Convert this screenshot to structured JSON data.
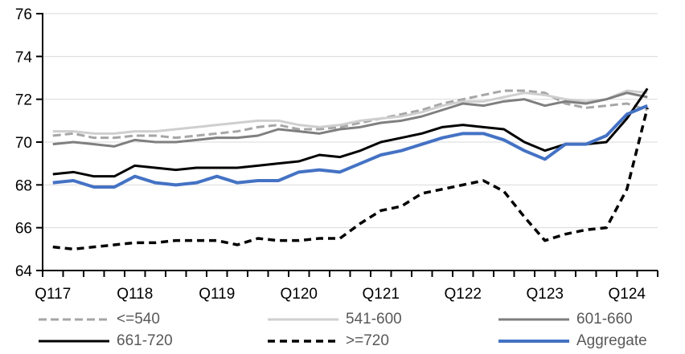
{
  "chart_data": {
    "type": "line",
    "title": "",
    "x_axis": {
      "tick_labels": [
        "Q117",
        "Q118",
        "Q119",
        "Q120",
        "Q121",
        "Q122",
        "Q123",
        "Q124"
      ],
      "tick_positions": [
        0,
        4,
        8,
        12,
        16,
        20,
        24,
        28
      ],
      "n_points": 30
    },
    "y_axis": {
      "min": 64,
      "max": 76,
      "ticks": [
        76,
        74,
        72,
        70,
        68,
        66,
        64
      ]
    },
    "grid": true,
    "legend_position": "bottom",
    "series": [
      {
        "name": "<=540",
        "color": "#A6A6A6",
        "style": "dashed",
        "dash": "10 5",
        "width": 3,
        "values": [
          70.3,
          70.4,
          70.2,
          70.2,
          70.3,
          70.3,
          70.2,
          70.3,
          70.4,
          70.5,
          70.7,
          70.8,
          70.6,
          70.6,
          70.7,
          70.9,
          71.1,
          71.3,
          71.5,
          71.8,
          72.0,
          72.2,
          72.4,
          72.4,
          72.3,
          71.8,
          71.6,
          71.7,
          71.8,
          71.5
        ]
      },
      {
        "name": "541-600",
        "color": "#D0CECE",
        "style": "solid",
        "dash": "",
        "width": 3,
        "values": [
          70.5,
          70.5,
          70.4,
          70.4,
          70.5,
          70.5,
          70.6,
          70.7,
          70.8,
          70.9,
          71.0,
          71.0,
          70.8,
          70.7,
          70.8,
          71.0,
          71.1,
          71.2,
          71.4,
          71.7,
          71.9,
          71.9,
          72.1,
          72.3,
          72.2,
          72.0,
          71.9,
          72.0,
          72.4,
          72.3
        ]
      },
      {
        "name": "601-660",
        "color": "#7F7F7F",
        "style": "solid",
        "dash": "",
        "width": 3,
        "values": [
          69.9,
          70.0,
          69.9,
          69.8,
          70.1,
          70.0,
          70.0,
          70.1,
          70.2,
          70.2,
          70.3,
          70.6,
          70.5,
          70.4,
          70.6,
          70.7,
          70.9,
          71.0,
          71.2,
          71.5,
          71.8,
          71.7,
          71.9,
          72.0,
          71.7,
          71.9,
          71.8,
          72.0,
          72.3,
          72.1
        ]
      },
      {
        "name": "661-720",
        "color": "#000000",
        "style": "solid",
        "dash": "",
        "width": 3,
        "values": [
          68.5,
          68.6,
          68.4,
          68.4,
          68.9,
          68.8,
          68.7,
          68.8,
          68.8,
          68.8,
          68.9,
          69.0,
          69.1,
          69.4,
          69.3,
          69.6,
          70.0,
          70.2,
          70.4,
          70.7,
          70.8,
          70.7,
          70.6,
          70.0,
          69.6,
          69.9,
          69.9,
          70.0,
          71.1,
          72.5
        ]
      },
      {
        "name": ">=720",
        "color": "#000000",
        "style": "dashed",
        "dash": "9 6",
        "width": 3.5,
        "values": [
          65.1,
          65.0,
          65.1,
          65.2,
          65.3,
          65.3,
          65.4,
          65.4,
          65.4,
          65.2,
          65.5,
          65.4,
          65.4,
          65.5,
          65.5,
          66.2,
          66.8,
          67.0,
          67.6,
          67.8,
          68.0,
          68.2,
          67.7,
          66.5,
          65.4,
          65.7,
          65.9,
          66.0,
          67.8,
          71.6
        ]
      },
      {
        "name": "Aggregate",
        "color": "#4472C4",
        "style": "solid",
        "dash": "",
        "width": 4,
        "values": [
          68.1,
          68.2,
          67.9,
          67.9,
          68.4,
          68.1,
          68.0,
          68.1,
          68.4,
          68.1,
          68.2,
          68.2,
          68.6,
          68.7,
          68.6,
          69.0,
          69.4,
          69.6,
          69.9,
          70.2,
          70.4,
          70.4,
          70.1,
          69.6,
          69.2,
          69.9,
          69.9,
          70.3,
          71.3,
          71.7
        ]
      }
    ],
    "colors": {
      "gridline": "#D9D9D9",
      "axis": "#000000",
      "tick_label": "#000000",
      "legend_text": "#595959",
      "background": "#FFFFFF"
    }
  }
}
